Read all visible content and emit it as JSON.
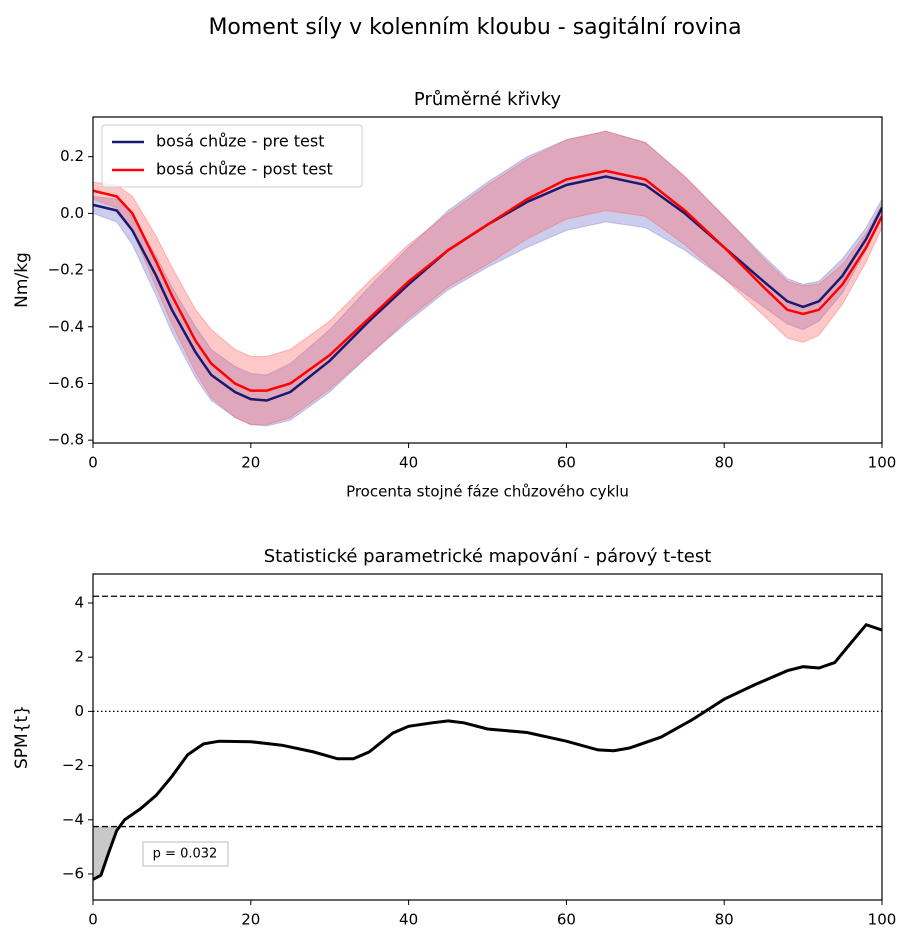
{
  "title": "Moment síly v kolenním kloubu - sagitální rovina",
  "chart_data": [
    {
      "type": "line",
      "title": "Průměrné křivky",
      "x_label": "Procenta stojné fáze chůzového cyklu",
      "y_label": "Nm/kg",
      "x": [
        0,
        3,
        5,
        8,
        10,
        13,
        15,
        18,
        20,
        22,
        25,
        30,
        35,
        40,
        45,
        50,
        55,
        60,
        65,
        70,
        75,
        80,
        85,
        88,
        90,
        92,
        95,
        98,
        100
      ],
      "series": [
        {
          "name": "bosá chůze - pre test",
          "color": "#191970",
          "band_color": "#8080d0",
          "values": [
            0.03,
            0.01,
            -0.06,
            -0.22,
            -0.34,
            -0.49,
            -0.57,
            -0.63,
            -0.655,
            -0.66,
            -0.63,
            -0.52,
            -0.38,
            -0.25,
            -0.13,
            -0.04,
            0.04,
            0.1,
            0.13,
            0.1,
            0.0,
            -0.12,
            -0.24,
            -0.31,
            -0.33,
            -0.31,
            -0.22,
            -0.09,
            0.02
          ],
          "upper": [
            0.06,
            0.05,
            -0.01,
            -0.15,
            -0.26,
            -0.4,
            -0.48,
            -0.54,
            -0.565,
            -0.57,
            -0.53,
            -0.41,
            -0.26,
            -0.12,
            0.01,
            0.11,
            0.2,
            0.26,
            0.29,
            0.25,
            0.13,
            -0.01,
            -0.15,
            -0.23,
            -0.25,
            -0.24,
            -0.16,
            -0.05,
            0.05
          ],
          "lower": [
            0.0,
            -0.03,
            -0.11,
            -0.29,
            -0.42,
            -0.58,
            -0.66,
            -0.72,
            -0.745,
            -0.75,
            -0.73,
            -0.63,
            -0.5,
            -0.38,
            -0.27,
            -0.19,
            -0.12,
            -0.06,
            -0.03,
            -0.05,
            -0.13,
            -0.23,
            -0.33,
            -0.39,
            -0.41,
            -0.38,
            -0.28,
            -0.13,
            -0.01
          ]
        },
        {
          "name": "bosá chůze - post test",
          "color": "#ff0000",
          "band_color": "#ff6060",
          "values": [
            0.08,
            0.06,
            0.0,
            -0.17,
            -0.29,
            -0.45,
            -0.53,
            -0.6,
            -0.625,
            -0.625,
            -0.6,
            -0.5,
            -0.37,
            -0.24,
            -0.13,
            -0.04,
            0.05,
            0.12,
            0.15,
            0.12,
            0.01,
            -0.12,
            -0.26,
            -0.34,
            -0.355,
            -0.34,
            -0.25,
            -0.12,
            -0.01
          ],
          "upper": [
            0.11,
            0.1,
            0.06,
            -0.08,
            -0.19,
            -0.34,
            -0.41,
            -0.48,
            -0.505,
            -0.505,
            -0.48,
            -0.38,
            -0.24,
            -0.11,
            0.0,
            0.1,
            0.19,
            0.26,
            0.29,
            0.25,
            0.13,
            -0.01,
            -0.16,
            -0.24,
            -0.255,
            -0.25,
            -0.18,
            -0.07,
            0.03
          ],
          "lower": [
            0.05,
            0.02,
            -0.06,
            -0.26,
            -0.39,
            -0.56,
            -0.65,
            -0.72,
            -0.745,
            -0.745,
            -0.72,
            -0.62,
            -0.5,
            -0.37,
            -0.26,
            -0.18,
            -0.09,
            -0.02,
            0.01,
            -0.01,
            -0.11,
            -0.23,
            -0.36,
            -0.44,
            -0.455,
            -0.43,
            -0.32,
            -0.17,
            -0.05
          ]
        }
      ],
      "xlim": [
        0,
        100
      ],
      "xticks": [
        0,
        20,
        40,
        60,
        80,
        100
      ],
      "ylim": [
        -0.81,
        0.34
      ],
      "yticks": [
        {
          "value": -0.8,
          "label": "−0.8"
        },
        {
          "value": -0.6,
          "label": "−0.6"
        },
        {
          "value": -0.4,
          "label": "−0.4"
        },
        {
          "value": -0.2,
          "label": "−0.2"
        },
        {
          "value": 0,
          "label": "0.0"
        },
        0.2
      ],
      "legend": "upper left"
    },
    {
      "type": "line",
      "title": "Statistické parametrické mapování - párový t-test",
      "y_label": "SPM{t}",
      "x": [
        0,
        1,
        2,
        3,
        4,
        6,
        8,
        10,
        12,
        14,
        16,
        20,
        24,
        28,
        31,
        33,
        35,
        38,
        40,
        43,
        45,
        47,
        50,
        55,
        60,
        64,
        66,
        68,
        72,
        76,
        80,
        84,
        88,
        90,
        92,
        94,
        96,
        98,
        100
      ],
      "values": [
        -6.2,
        -6.05,
        -5.2,
        -4.4,
        -4.0,
        -3.6,
        -3.1,
        -2.4,
        -1.6,
        -1.2,
        -1.1,
        -1.12,
        -1.25,
        -1.5,
        -1.75,
        -1.75,
        -1.5,
        -0.8,
        -0.55,
        -0.42,
        -0.35,
        -0.42,
        -0.65,
        -0.78,
        -1.1,
        -1.42,
        -1.45,
        -1.35,
        -0.95,
        -0.3,
        0.45,
        1.0,
        1.5,
        1.65,
        1.6,
        1.8,
        2.5,
        3.2,
        3.0
      ],
      "color": "#000000",
      "threshold": 4.25,
      "annotation": "p = 0.032",
      "xlim": [
        0,
        100
      ],
      "xticks": [
        0,
        20,
        40,
        60,
        80,
        100
      ],
      "ylim": [
        -6.96,
        5.07
      ],
      "yticks": [
        {
          "value": -6,
          "label": "−6"
        },
        {
          "value": -4,
          "label": "−4"
        },
        {
          "value": -2,
          "label": "−2"
        },
        0,
        2,
        4
      ]
    }
  ]
}
